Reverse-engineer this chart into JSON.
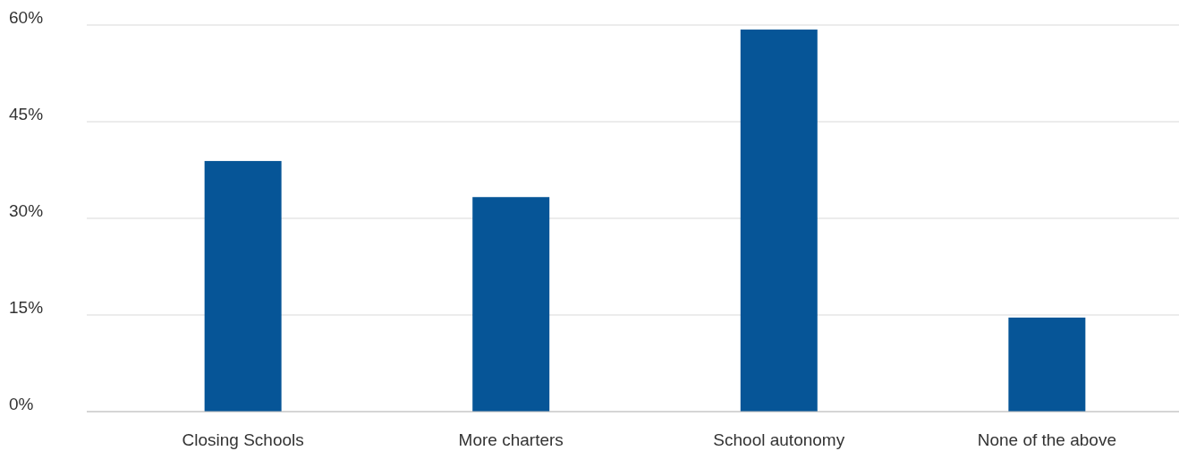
{
  "chart_data": {
    "type": "bar",
    "categories": [
      "Closing Schools",
      "More charters",
      "School autonomy",
      "None of the above"
    ],
    "values": [
      38.9,
      33.3,
      59.3,
      14.6
    ],
    "color": "#065597",
    "ylim": [
      0,
      60
    ],
    "yticks": [
      {
        "value": 0,
        "label": "0%"
      },
      {
        "value": 15,
        "label": "15%"
      },
      {
        "value": 30,
        "label": "30%"
      },
      {
        "value": 45,
        "label": "45%"
      },
      {
        "value": 60,
        "label": "60%"
      }
    ],
    "grid": "y"
  }
}
